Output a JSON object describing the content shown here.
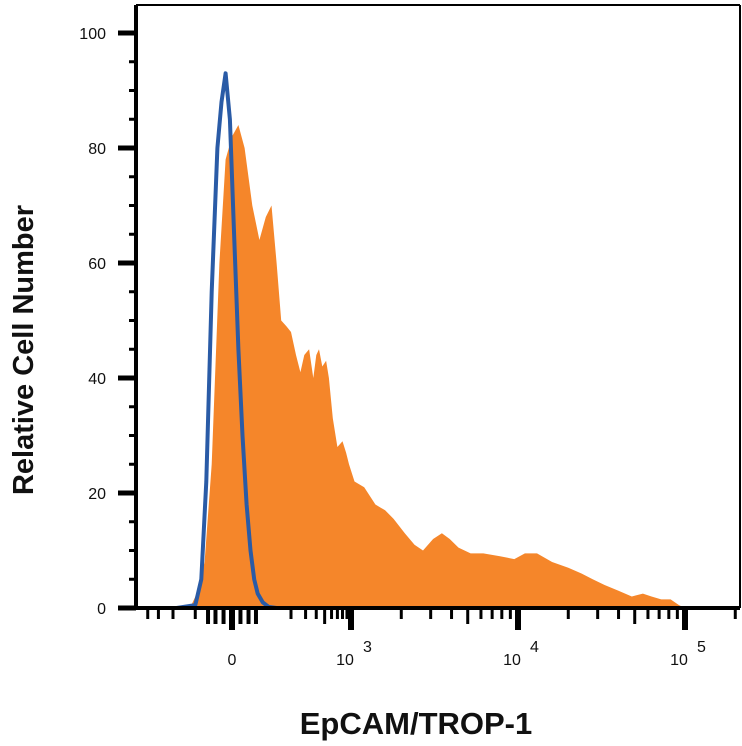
{
  "chart_data": {
    "type": "area",
    "xlabel": "EpCAM/TROP-1",
    "ylabel": "Relative Cell Number",
    "ylim": [
      0,
      100
    ],
    "x_scale": "biexponential",
    "x_tick_labels": [
      {
        "value": 0,
        "base": "0",
        "exp": ""
      },
      {
        "value": 1000,
        "base": "10",
        "exp": "3"
      },
      {
        "value": 10000,
        "base": "10",
        "exp": "4"
      },
      {
        "value": 100000,
        "base": "10",
        "exp": "5"
      }
    ],
    "y_ticks": [
      0,
      20,
      40,
      60,
      80,
      100
    ],
    "legend": "none",
    "grid": false,
    "series": [
      {
        "style": "filled",
        "color": "#f5862a",
        "points": [
          [
            -120,
            0
          ],
          [
            -90,
            3
          ],
          [
            -70,
            8
          ],
          [
            -50,
            25
          ],
          [
            -30,
            60
          ],
          [
            -15,
            78
          ],
          [
            0,
            82
          ],
          [
            15,
            84
          ],
          [
            30,
            80
          ],
          [
            50,
            70
          ],
          [
            70,
            64
          ],
          [
            90,
            68
          ],
          [
            110,
            70
          ],
          [
            130,
            60
          ],
          [
            150,
            50
          ],
          [
            175,
            49
          ],
          [
            200,
            48
          ],
          [
            230,
            44
          ],
          [
            260,
            41
          ],
          [
            290,
            44
          ],
          [
            330,
            45
          ],
          [
            370,
            40
          ],
          [
            400,
            44
          ],
          [
            430,
            45
          ],
          [
            470,
            42
          ],
          [
            520,
            43
          ],
          [
            560,
            40
          ],
          [
            620,
            33
          ],
          [
            700,
            28
          ],
          [
            800,
            29
          ],
          [
            880,
            27
          ],
          [
            950,
            25
          ],
          [
            1050,
            22
          ],
          [
            1200,
            21
          ],
          [
            1400,
            18
          ],
          [
            1600,
            17
          ],
          [
            1800,
            15.5
          ],
          [
            2100,
            13
          ],
          [
            2400,
            11
          ],
          [
            2700,
            10
          ],
          [
            3100,
            12
          ],
          [
            3500,
            13
          ],
          [
            3900,
            12
          ],
          [
            4400,
            10.5
          ],
          [
            5200,
            9.5
          ],
          [
            6200,
            9.5
          ],
          [
            7800,
            9
          ],
          [
            9500,
            8.5
          ],
          [
            11000,
            9.5
          ],
          [
            13000,
            9.5
          ],
          [
            16000,
            8
          ],
          [
            20000,
            7
          ],
          [
            24000,
            6
          ],
          [
            28000,
            5
          ],
          [
            33000,
            4
          ],
          [
            40000,
            3
          ],
          [
            48000,
            2
          ],
          [
            56000,
            2.5
          ],
          [
            63000,
            2
          ],
          [
            72000,
            1.5
          ],
          [
            82000,
            1.5
          ],
          [
            92000,
            0.5
          ],
          [
            100000,
            0
          ],
          [
            120000,
            0
          ]
        ]
      },
      {
        "style": "line",
        "color": "#2a5ba6",
        "points": [
          [
            -180,
            0
          ],
          [
            -100,
            0.5
          ],
          [
            -80,
            5
          ],
          [
            -65,
            22
          ],
          [
            -50,
            55
          ],
          [
            -35,
            80
          ],
          [
            -25,
            88
          ],
          [
            -15,
            93
          ],
          [
            -5,
            85
          ],
          [
            5,
            65
          ],
          [
            15,
            45
          ],
          [
            25,
            30
          ],
          [
            35,
            18
          ],
          [
            45,
            10
          ],
          [
            55,
            5
          ],
          [
            65,
            2.5
          ],
          [
            80,
            1
          ],
          [
            100,
            0.2
          ],
          [
            130,
            0
          ],
          [
            300,
            0
          ],
          [
            1000,
            0
          ],
          [
            10000,
            0
          ],
          [
            100000,
            0
          ],
          [
            200000,
            0
          ]
        ]
      }
    ]
  }
}
